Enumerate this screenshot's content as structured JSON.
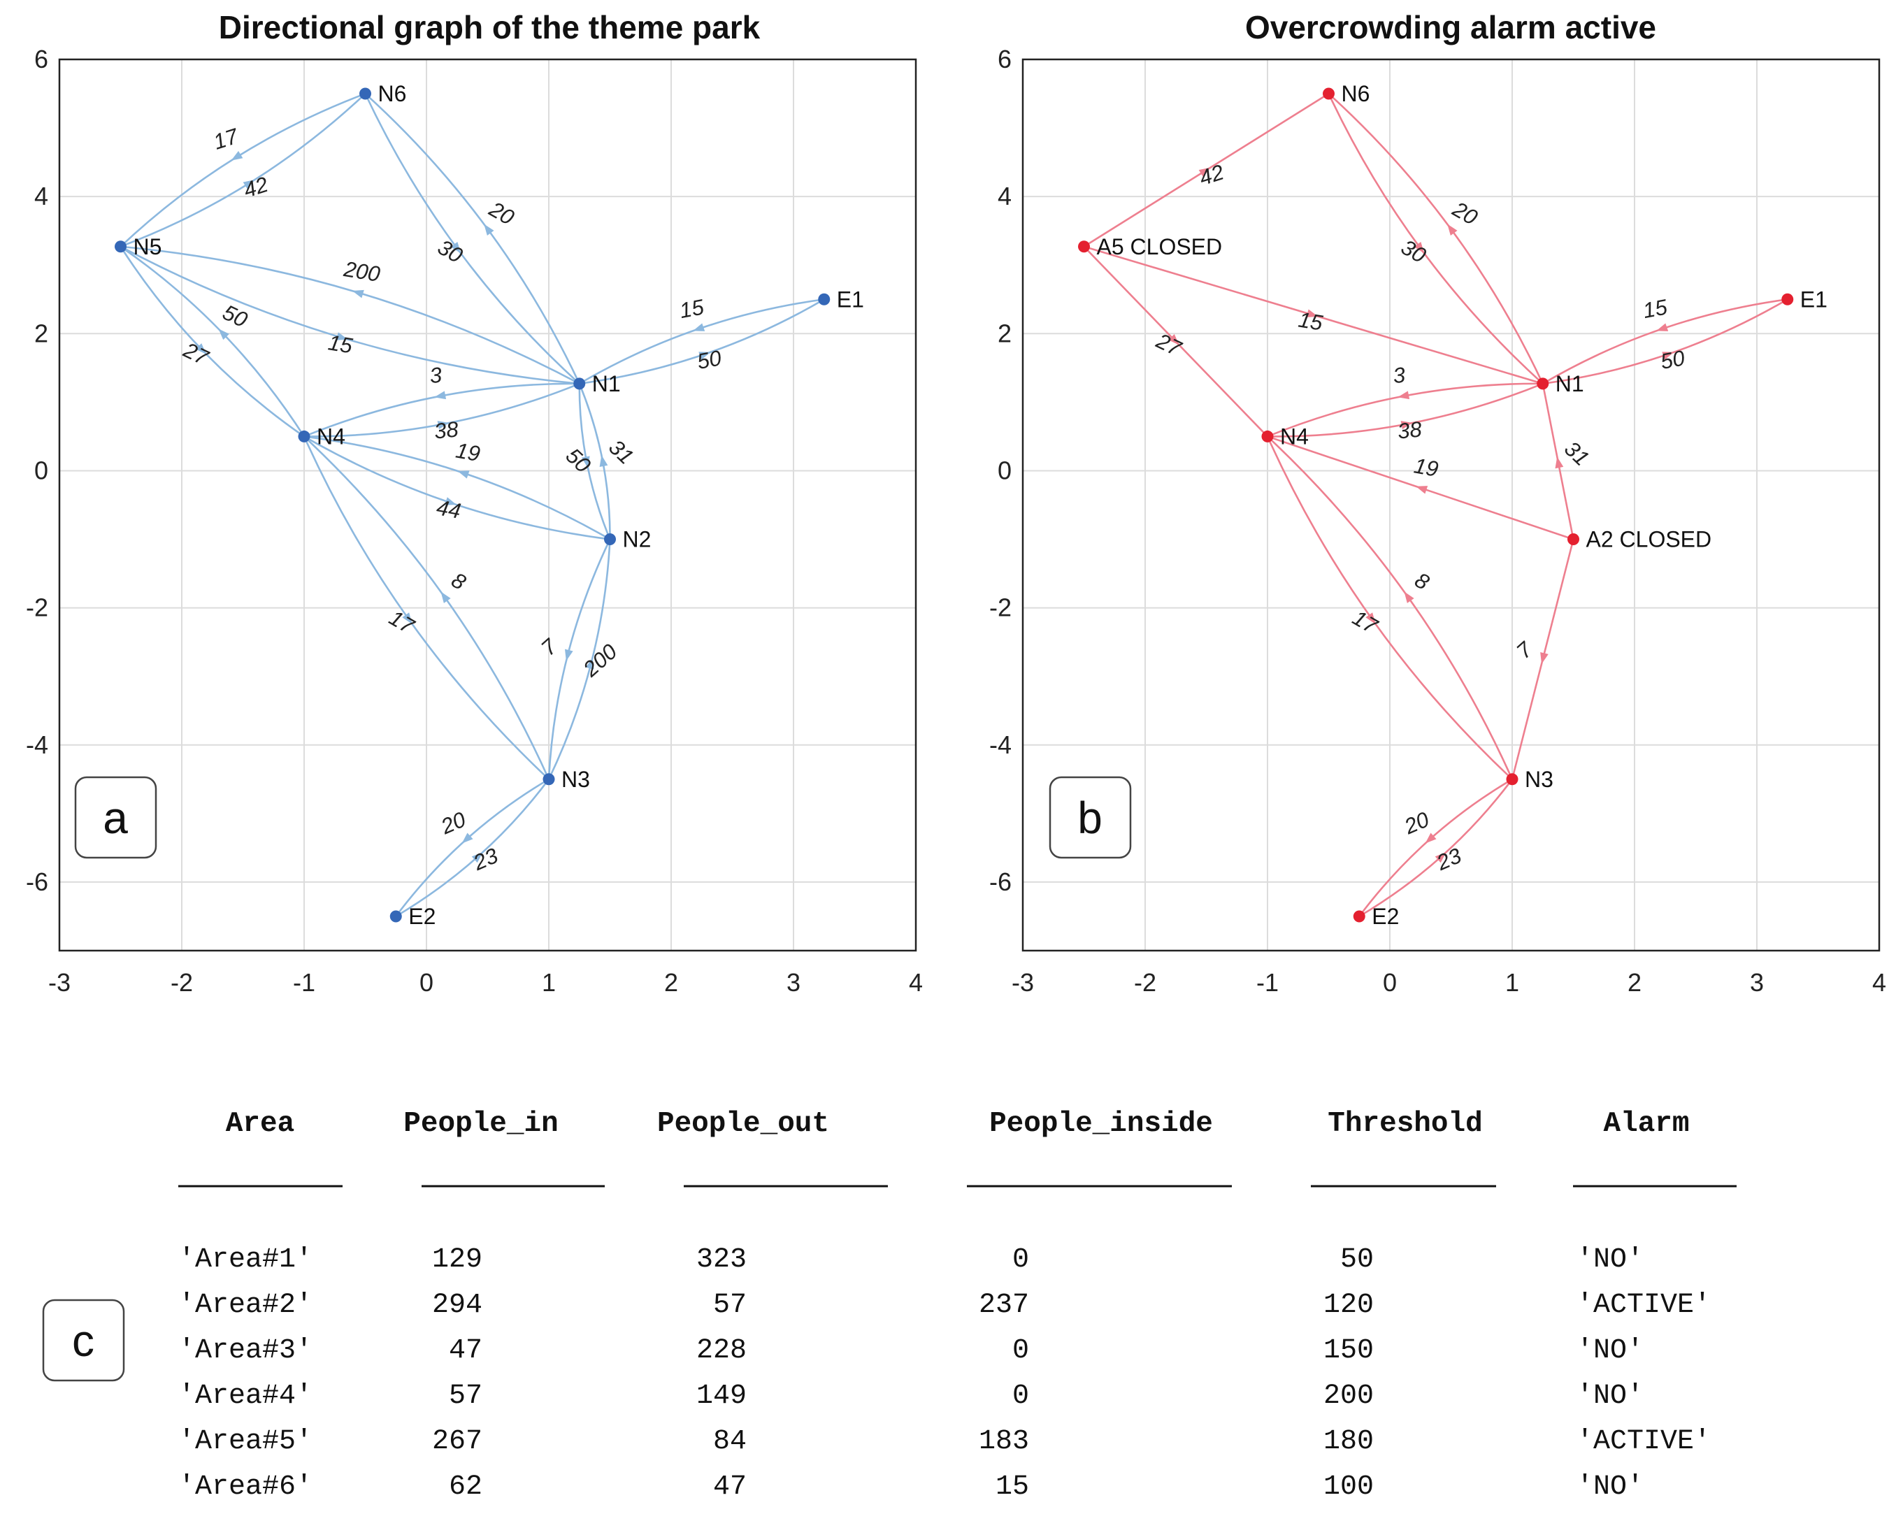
{
  "chart_data": [
    {
      "type": "graph",
      "panel_label": "a",
      "title": "Directional graph of the theme park",
      "xlim": [
        -3,
        4
      ],
      "ylim": [
        -7,
        6
      ],
      "xticks": [
        -3,
        -2,
        -1,
        0,
        1,
        2,
        3,
        4
      ],
      "yticks": [
        -6,
        -4,
        -2,
        0,
        2,
        4,
        6
      ],
      "grid": true,
      "colors": {
        "edge": "#8cb8df",
        "node": "#3467b7"
      },
      "nodes": [
        {
          "id": "N6",
          "x": -0.5,
          "y": 5.5,
          "label": "N6"
        },
        {
          "id": "N5",
          "x": -2.5,
          "y": 3.27,
          "label": "N5"
        },
        {
          "id": "E1",
          "x": 3.25,
          "y": 2.5,
          "label": "E1"
        },
        {
          "id": "N1",
          "x": 1.25,
          "y": 1.27,
          "label": "N1"
        },
        {
          "id": "N4",
          "x": -1.0,
          "y": 0.5,
          "label": "N4"
        },
        {
          "id": "N2",
          "x": 1.5,
          "y": -1.0,
          "label": "N2"
        },
        {
          "id": "N3",
          "x": 1.0,
          "y": -4.5,
          "label": "N3"
        },
        {
          "id": "E2",
          "x": -0.25,
          "y": -6.5,
          "label": "E2"
        }
      ],
      "edges": [
        {
          "from": "N6",
          "to": "N5",
          "weight": "17",
          "curve": 1
        },
        {
          "from": "N5",
          "to": "N6",
          "weight": "42",
          "curve": 1
        },
        {
          "from": "N6",
          "to": "N1",
          "weight": "30",
          "curve": 1
        },
        {
          "from": "N1",
          "to": "N6",
          "weight": "20",
          "curve": 1
        },
        {
          "from": "N1",
          "to": "N5",
          "weight": "200",
          "curve": 1
        },
        {
          "from": "N5",
          "to": "N1",
          "weight": "15",
          "curve": 1
        },
        {
          "from": "N5",
          "to": "N4",
          "weight": "27",
          "curve": 1
        },
        {
          "from": "N4",
          "to": "N5",
          "weight": "50",
          "curve": 1
        },
        {
          "from": "N1",
          "to": "E1",
          "weight": "50",
          "curve": 1
        },
        {
          "from": "E1",
          "to": "N1",
          "weight": "15",
          "curve": 1
        },
        {
          "from": "N1",
          "to": "N4",
          "weight": "3",
          "curve": 1
        },
        {
          "from": "N4",
          "to": "N1",
          "weight": "38",
          "curve": 1
        },
        {
          "from": "N1",
          "to": "N2",
          "weight": "50",
          "curve": 1
        },
        {
          "from": "N2",
          "to": "N1",
          "weight": "31",
          "curve": 1
        },
        {
          "from": "N2",
          "to": "N4",
          "weight": "19",
          "curve": 1
        },
        {
          "from": "N4",
          "to": "N2",
          "weight": "44",
          "curve": 1
        },
        {
          "from": "N4",
          "to": "N3",
          "weight": "17",
          "curve": 1
        },
        {
          "from": "N3",
          "to": "N4",
          "weight": "8",
          "curve": 1
        },
        {
          "from": "N2",
          "to": "N3",
          "weight": "7",
          "curve": 1
        },
        {
          "from": "N3",
          "to": "N2",
          "weight": "200",
          "curve": 1
        },
        {
          "from": "N3",
          "to": "E2",
          "weight": "20",
          "curve": 1
        },
        {
          "from": "E2",
          "to": "N3",
          "weight": "23",
          "curve": 1
        }
      ]
    },
    {
      "type": "graph",
      "panel_label": "b",
      "title": "Overcrowding alarm active",
      "xlim": [
        -3,
        4
      ],
      "ylim": [
        -7,
        6
      ],
      "xticks": [
        -3,
        -2,
        -1,
        0,
        1,
        2,
        3,
        4
      ],
      "yticks": [
        -6,
        -4,
        -2,
        0,
        2,
        4,
        6
      ],
      "grid": true,
      "colors": {
        "edge": "#ee7f8f",
        "node": "#e4202f"
      },
      "nodes": [
        {
          "id": "N6",
          "x": -0.5,
          "y": 5.5,
          "label": "N6"
        },
        {
          "id": "N5",
          "x": -2.5,
          "y": 3.27,
          "label": "A5 CLOSED"
        },
        {
          "id": "E1",
          "x": 3.25,
          "y": 2.5,
          "label": "E1"
        },
        {
          "id": "N1",
          "x": 1.25,
          "y": 1.27,
          "label": "N1"
        },
        {
          "id": "N4",
          "x": -1.0,
          "y": 0.5,
          "label": "N4"
        },
        {
          "id": "N2",
          "x": 1.5,
          "y": -1.0,
          "label": "A2 CLOSED"
        },
        {
          "id": "N3",
          "x": 1.0,
          "y": -4.5,
          "label": "N3"
        },
        {
          "id": "E2",
          "x": -0.25,
          "y": -6.5,
          "label": "E2"
        }
      ],
      "edges": [
        {
          "from": "N5",
          "to": "N6",
          "weight": "42",
          "curve": 0
        },
        {
          "from": "N6",
          "to": "N1",
          "weight": "30",
          "curve": 1
        },
        {
          "from": "N1",
          "to": "N6",
          "weight": "20",
          "curve": 1
        },
        {
          "from": "N5",
          "to": "N1",
          "weight": "15",
          "curve": 0
        },
        {
          "from": "N5",
          "to": "N4",
          "weight": "27",
          "curve": 0
        },
        {
          "from": "N1",
          "to": "E1",
          "weight": "50",
          "curve": 1
        },
        {
          "from": "E1",
          "to": "N1",
          "weight": "15",
          "curve": 1
        },
        {
          "from": "N1",
          "to": "N4",
          "weight": "3",
          "curve": 1
        },
        {
          "from": "N4",
          "to": "N1",
          "weight": "38",
          "curve": 1
        },
        {
          "from": "N2",
          "to": "N1",
          "weight": "31",
          "curve": 0
        },
        {
          "from": "N2",
          "to": "N4",
          "weight": "19",
          "curve": 0
        },
        {
          "from": "N4",
          "to": "N3",
          "weight": "17",
          "curve": 1
        },
        {
          "from": "N3",
          "to": "N4",
          "weight": "8",
          "curve": 1
        },
        {
          "from": "N2",
          "to": "N3",
          "weight": "7",
          "curve": 0
        },
        {
          "from": "N3",
          "to": "E2",
          "weight": "20",
          "curve": 1
        },
        {
          "from": "E2",
          "to": "N3",
          "weight": "23",
          "curve": 1
        }
      ]
    },
    {
      "type": "table",
      "panel_label": "c",
      "columns": [
        "Area",
        "People_in",
        "People_out",
        "People_inside",
        "Threshold",
        "Alarm"
      ],
      "rows": [
        [
          "'Area#1'",
          "129",
          "323",
          "0",
          "50",
          "'NO'"
        ],
        [
          "'Area#2'",
          "294",
          "57",
          "237",
          "120",
          "'ACTIVE'"
        ],
        [
          "'Area#3'",
          "47",
          "228",
          "0",
          "150",
          "'NO'"
        ],
        [
          "'Area#4'",
          "57",
          "149",
          "0",
          "200",
          "'NO'"
        ],
        [
          "'Area#5'",
          "267",
          "84",
          "183",
          "180",
          "'ACTIVE'"
        ],
        [
          "'Area#6'",
          "62",
          "47",
          "15",
          "100",
          "'NO'"
        ]
      ]
    }
  ]
}
